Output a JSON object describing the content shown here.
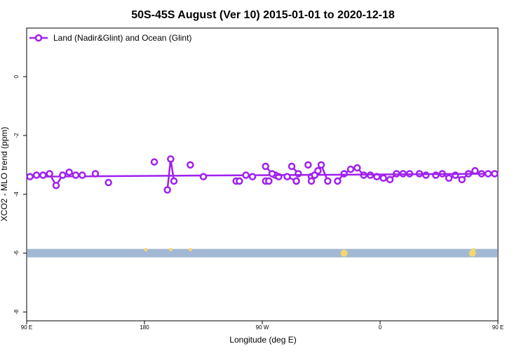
{
  "chart_data": {
    "type": "line",
    "title": "50S-45S August (Ver 10)   2015-01-01 to 2020-12-18",
    "xlabel": "Longitude (deg E)",
    "ylabel": "XCO2 - MLO trend (ppm)",
    "xlim": [
      90,
      450
    ],
    "ylim": [
      -8.3,
      1.65
    ],
    "x_ticks": [
      {
        "value": 90,
        "label": "90 E"
      },
      {
        "value": 180,
        "label": "180"
      },
      {
        "value": 270,
        "label": "90 W"
      },
      {
        "value": 360,
        "label": "0"
      },
      {
        "value": 450,
        "label": "90 E"
      },
      {
        "value": 540,
        "label": "180"
      }
    ],
    "y_ticks": [
      {
        "value": 0,
        "label": "0"
      },
      {
        "value": -2,
        "label": "-2"
      },
      {
        "value": -4,
        "label": "-4"
      },
      {
        "value": -6,
        "label": "-6"
      },
      {
        "value": -8,
        "label": "-8"
      }
    ],
    "legend": {
      "position": "top-left",
      "entries": [
        "Land (Nadir&Glint) and Ocean (Glint)"
      ]
    },
    "series": [
      {
        "name": "Land (Nadir&Glint) and Ocean (Glint)",
        "color": "#a020f0",
        "segments": [
          {
            "x": [
              -87.5,
              -85
            ],
            "y": [
              -3.55,
              -3.55
            ]
          },
          {
            "x": [
              -80,
              -77.5
            ],
            "y": [
              -3.35,
              -3.4
            ]
          },
          {
            "x": [
              -67.5,
              -62.5
            ],
            "y": [
              -3.05,
              -3.3
            ]
          },
          {
            "x": [
              -52.5
            ],
            "y": [
              -3.4
            ]
          },
          {
            "x": [
              -45,
              -40
            ],
            "y": [
              -3.0,
              -3.55
            ]
          },
          {
            "x": [
              -32.5,
              -27.5,
              -22.5,
              -17.5,
              -12.5,
              -7.5,
              -2.5,
              2.5,
              7.5,
              12.5,
              17.5,
              22.5
            ],
            "y": [
              -3.55,
              -3.3,
              -3.15,
              -3.1,
              -3.35,
              -3.35,
              -3.4,
              -3.45,
              -3.5,
              -3.3,
              -3.3,
              -3.3
            ]
          },
          {
            "x": [
              30,
              35
            ],
            "y": [
              -3.3,
              -3.35
            ]
          },
          {
            "x": [
              42.5,
              47.5,
              52.5,
              57.5,
              62.5,
              67.5,
              72.5,
              77.5
            ],
            "y": [
              -3.35,
              -3.3,
              -3.45,
              -3.35,
              -3.5,
              -3.3,
              -3.2,
              -3.3
            ]
          },
          {
            "x": [
              82.5,
              87.5,
              92.5,
              97.5,
              102.5,
              107.5,
              112.5,
              117.5,
              122.5,
              127.5,
              132.5
            ],
            "y": [
              -3.3,
              -3.3,
              -3.4,
              -3.35,
              -3.35,
              -3.3,
              -3.7,
              -3.35,
              -3.25,
              -3.35,
              -3.35
            ]
          },
          {
            "x": [
              142.5
            ],
            "y": [
              -3.3
            ]
          },
          {
            "x": [
              152.5
            ],
            "y": [
              -3.6
            ]
          },
          {
            "x": [
              -172.5
            ],
            "y": [
              -2.9
            ]
          },
          {
            "x": [
              -162.5,
              -160,
              -157.5
            ],
            "y": [
              -3.85,
              -2.8,
              -3.55
            ]
          },
          {
            "x": [
              -145
            ],
            "y": [
              -3.0
            ]
          },
          {
            "x": [
              -135
            ],
            "y": [
              -3.4
            ]
          },
          {
            "x": [
              -110,
              -107.5
            ],
            "y": [
              -3.55,
              -3.55
            ]
          },
          {
            "x": [
              -102.5,
              -97.5
            ],
            "y": [
              -3.35,
              -3.4
            ]
          },
          {
            "x": [
              -87.5,
              -82.5
            ],
            "y": [
              -3.05,
              -3.3
            ]
          },
          {
            "x": [
              -71,
              -64
            ],
            "y": [
              -3.4,
              -3.55
            ]
          },
          {
            "x": [
              -64
            ],
            "y": [
              -3.55
            ]
          },
          {
            "x": [
              -55
            ],
            "y": [
              -3.0
            ]
          },
          {
            "x": [
              -52.5,
              -50
            ],
            "y": [
              -3.55,
              -3.35
            ]
          },
          {
            "x": [
              -50,
              -47.5
            ],
            "y": [
              -3.35,
              -3.2
            ]
          }
        ]
      }
    ],
    "land_mask": {
      "y": -6.0,
      "color": "#a3b8d4",
      "land_color": "#f5d76e",
      "land_spots_x": [
        -27.5,
        70.5,
        71.5,
        -160,
        -145,
        181
      ]
    }
  }
}
